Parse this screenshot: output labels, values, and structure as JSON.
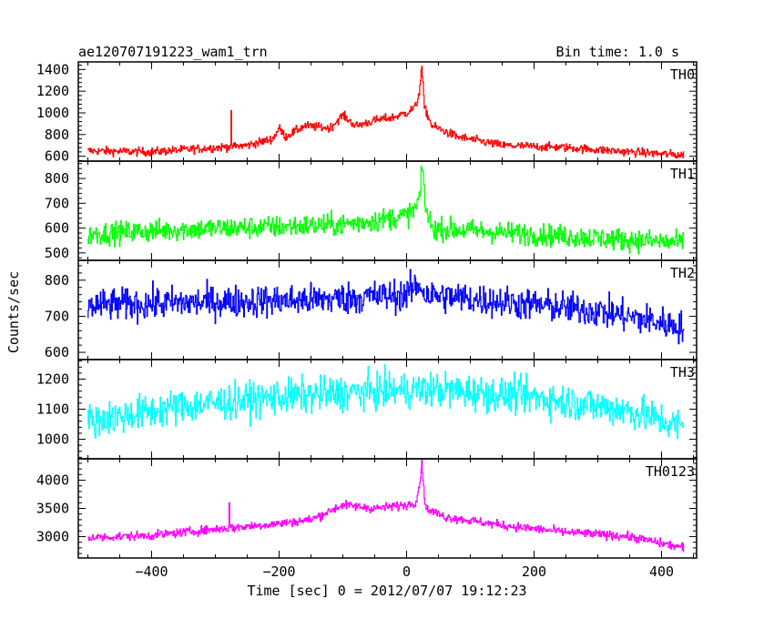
{
  "chart_data": {
    "type": "line",
    "title": "ae120707191223_wam1_trn",
    "bin_time": "Bin time: 1.0 s",
    "xlabel": "Time [sec] 0 = 2012/07/07 19:12:23",
    "ylabel": "Counts/sec",
    "xlim": [
      -515,
      455
    ],
    "x_data_range": [
      -500,
      435
    ],
    "xticks": [
      -400,
      -200,
      0,
      200,
      400
    ],
    "grid": false,
    "panels": [
      {
        "name": "TH0",
        "color": "#ff0000",
        "ylim": [
          555,
          1470
        ],
        "yticks": [
          600,
          800,
          1000,
          1200,
          1400
        ],
        "shape": [
          [
            -500,
            650
          ],
          [
            -400,
            640
          ],
          [
            -300,
            680
          ],
          [
            -250,
            700
          ],
          [
            -210,
            760
          ],
          [
            -200,
            860
          ],
          [
            -190,
            780
          ],
          [
            -160,
            880
          ],
          [
            -120,
            860
          ],
          [
            -100,
            980
          ],
          [
            -80,
            880
          ],
          [
            -50,
            930
          ],
          [
            -20,
            960
          ],
          [
            0,
            1000
          ],
          [
            15,
            1060
          ],
          [
            20,
            1200
          ],
          [
            24,
            1430
          ],
          [
            28,
            1050
          ],
          [
            40,
            880
          ],
          [
            80,
            780
          ],
          [
            150,
            700
          ],
          [
            250,
            680
          ],
          [
            350,
            640
          ],
          [
            435,
            610
          ]
        ],
        "spikes": [
          [
            -275,
            1020
          ]
        ],
        "noise": 28
      },
      {
        "name": "TH1",
        "color": "#00ff00",
        "ylim": [
          470,
          870
        ],
        "yticks": [
          500,
          600,
          700,
          800
        ],
        "shape": [
          [
            -500,
            575
          ],
          [
            -350,
            595
          ],
          [
            -200,
            605
          ],
          [
            -100,
            615
          ],
          [
            -50,
            630
          ],
          [
            0,
            650
          ],
          [
            15,
            680
          ],
          [
            22,
            750
          ],
          [
            25,
            850
          ],
          [
            30,
            680
          ],
          [
            40,
            600
          ],
          [
            100,
            590
          ],
          [
            200,
            575
          ],
          [
            300,
            560
          ],
          [
            435,
            540
          ]
        ],
        "spikes": [],
        "noise": 32
      },
      {
        "name": "TH2",
        "color": "#0000ff",
        "ylim": [
          580,
          855
        ],
        "yticks": [
          600,
          700,
          800
        ],
        "shape": [
          [
            -500,
            730
          ],
          [
            -300,
            740
          ],
          [
            -150,
            745
          ],
          [
            0,
            760
          ],
          [
            20,
            790
          ],
          [
            30,
            760
          ],
          [
            150,
            740
          ],
          [
            300,
            715
          ],
          [
            435,
            670
          ]
        ],
        "spikes": [],
        "noise": 32
      },
      {
        "name": "TH3",
        "color": "#00ffff",
        "ylim": [
          935,
          1265
        ],
        "yticks": [
          1000,
          1100,
          1200
        ],
        "shape": [
          [
            -500,
            1060
          ],
          [
            -350,
            1110
          ],
          [
            -200,
            1140
          ],
          [
            -50,
            1160
          ],
          [
            50,
            1165
          ],
          [
            200,
            1140
          ],
          [
            350,
            1095
          ],
          [
            435,
            1040
          ]
        ],
        "spikes": [],
        "noise": 42
      },
      {
        "name": "TH0123",
        "color": "#ff00ff",
        "ylim": [
          2620,
          4380
        ],
        "yticks": [
          3000,
          3500,
          4000
        ],
        "shape": [
          [
            -500,
            2980
          ],
          [
            -400,
            3020
          ],
          [
            -300,
            3130
          ],
          [
            -250,
            3180
          ],
          [
            -200,
            3230
          ],
          [
            -150,
            3300
          ],
          [
            -100,
            3560
          ],
          [
            -50,
            3500
          ],
          [
            0,
            3560
          ],
          [
            15,
            3620
          ],
          [
            20,
            3900
          ],
          [
            24,
            4300
          ],
          [
            30,
            3500
          ],
          [
            60,
            3350
          ],
          [
            150,
            3200
          ],
          [
            250,
            3080
          ],
          [
            350,
            3000
          ],
          [
            435,
            2800
          ]
        ],
        "spikes": [
          [
            -278,
            3600
          ]
        ],
        "noise": 55
      }
    ]
  }
}
